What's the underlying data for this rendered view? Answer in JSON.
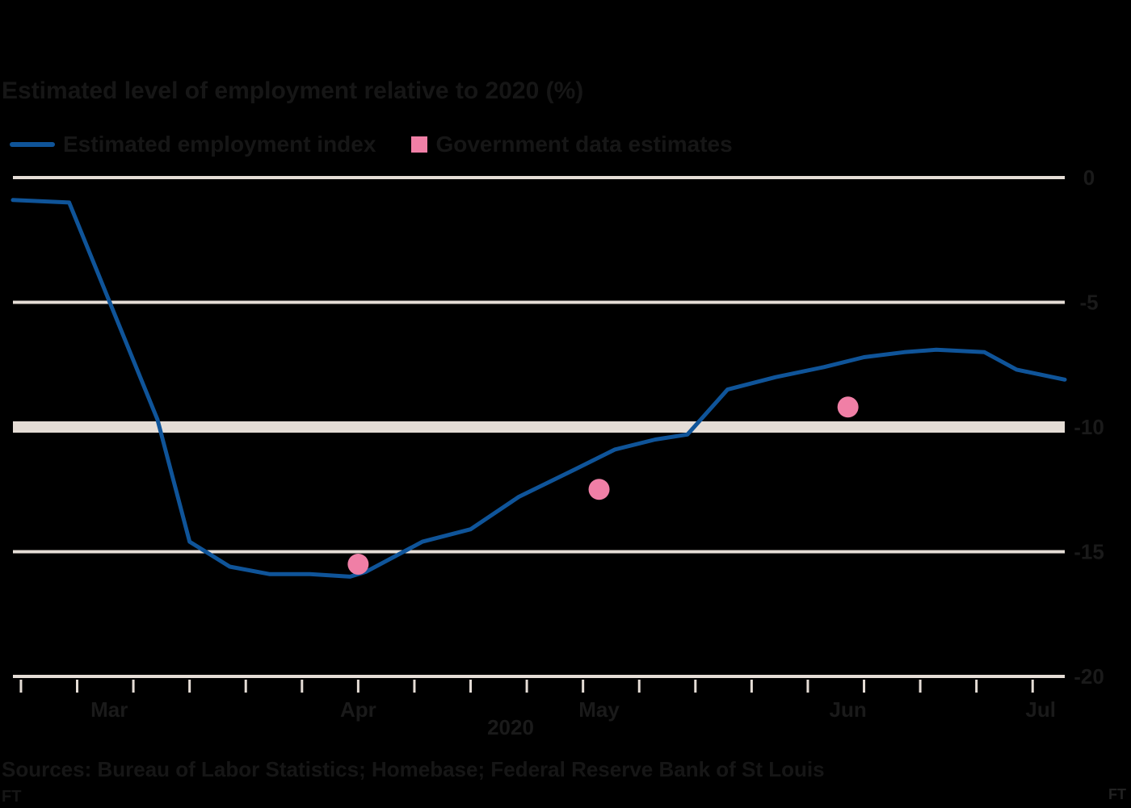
{
  "colors": {
    "background": "#000000",
    "gridline": "#e5ddd6",
    "axis_text": "#1a1a1a",
    "line": "#0f5499",
    "dot": "#f07fa6"
  },
  "title": "Estimated level of employment relative to 2020 (%)",
  "legend": [
    {
      "label": "Estimated employment index",
      "shape": "line",
      "color": "#0f5499"
    },
    {
      "label": "Government data estimates",
      "shape": "square",
      "color": "#f07fa6"
    }
  ],
  "source": "Sources: Bureau of Labor Statistics; Homebase; Federal Reserve Bank of St Louis",
  "source_sub": "FT",
  "logo_text": "FT",
  "chart_data": {
    "type": "line",
    "xlabel": "",
    "ylabel": "",
    "year_label": "2020",
    "ylim": [
      -20,
      0
    ],
    "y_ticks": [
      0,
      -5,
      -10,
      -15,
      -20
    ],
    "y_tick_labels": [
      "0",
      "-5",
      "-10",
      "-15",
      "-20"
    ],
    "xlim": [
      "2020-02-29",
      "2020-07-09"
    ],
    "x_ticks": [
      "2020-03-01",
      "2020-03-08",
      "2020-03-15",
      "2020-03-22",
      "2020-03-29",
      "2020-04-05",
      "2020-04-12",
      "2020-04-19",
      "2020-04-26",
      "2020-05-03",
      "2020-05-10",
      "2020-05-17",
      "2020-05-24",
      "2020-05-31",
      "2020-06-07",
      "2020-06-14",
      "2020-06-21",
      "2020-06-28",
      "2020-07-05"
    ],
    "x_month_labels": [
      {
        "date": "2020-03-12",
        "label": "Mar"
      },
      {
        "date": "2020-04-12",
        "label": "Apr"
      },
      {
        "date": "2020-05-12",
        "label": "May"
      },
      {
        "date": "2020-06-12",
        "label": "Jun"
      },
      {
        "date": "2020-07-06",
        "label": "Jul"
      }
    ],
    "series": [
      {
        "name": "Estimated employment index",
        "kind": "line",
        "x": [
          "2020-02-29",
          "2020-03-07",
          "2020-03-18",
          "2020-03-22",
          "2020-03-27",
          "2020-04-01",
          "2020-04-06",
          "2020-04-11",
          "2020-04-13",
          "2020-04-20",
          "2020-04-26",
          "2020-05-02",
          "2020-05-09",
          "2020-05-14",
          "2020-05-19",
          "2020-05-23",
          "2020-05-28",
          "2020-06-03",
          "2020-06-09",
          "2020-06-14",
          "2020-06-19",
          "2020-06-23",
          "2020-06-29",
          "2020-07-03",
          "2020-07-09"
        ],
        "y": [
          -0.9,
          -1.0,
          -9.7,
          -14.6,
          -15.6,
          -15.9,
          -15.9,
          -16.0,
          -15.8,
          -14.6,
          -14.1,
          -12.8,
          -11.7,
          -10.9,
          -10.5,
          -10.3,
          -8.5,
          -8.0,
          -7.6,
          -7.2,
          -7.0,
          -6.9,
          -7.0,
          -7.7,
          -8.1
        ]
      },
      {
        "name": "Government data estimates",
        "kind": "scatter",
        "x": [
          "2020-04-12",
          "2020-05-12",
          "2020-06-12"
        ],
        "y": [
          -15.5,
          -12.5,
          -9.2
        ]
      }
    ]
  }
}
